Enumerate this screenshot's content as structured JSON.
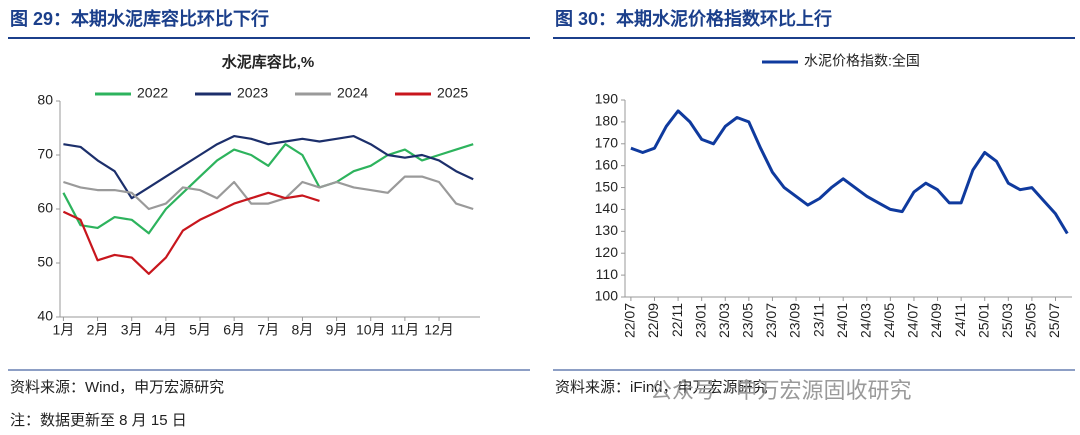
{
  "chart_data": [
    {
      "type": "line",
      "title": "图 29：本期水泥库容比环比下行",
      "chart_title": "水泥库容比,%",
      "x": [
        1,
        1.5,
        2,
        2.5,
        3,
        3.5,
        4,
        4.5,
        5,
        5.5,
        6,
        6.5,
        7,
        7.5,
        8,
        8.5,
        9,
        9.5,
        10,
        10.5,
        11,
        11.5,
        12,
        12.5,
        13
      ],
      "xlim": [
        0.9,
        13.2
      ],
      "xticks": [
        {
          "value": 1,
          "label": "1月"
        },
        {
          "value": 2,
          "label": "2月"
        },
        {
          "value": 3,
          "label": "3月"
        },
        {
          "value": 4,
          "label": "4月"
        },
        {
          "value": 5,
          "label": "5月"
        },
        {
          "value": 6,
          "label": "6月"
        },
        {
          "value": 7,
          "label": "7月"
        },
        {
          "value": 8,
          "label": "8月"
        },
        {
          "value": 9,
          "label": "9月"
        },
        {
          "value": 10,
          "label": "10月"
        },
        {
          "value": 11,
          "label": "11月"
        },
        {
          "value": 12,
          "label": "12月"
        }
      ],
      "ylim": [
        40,
        80
      ],
      "yticks": [
        40,
        50,
        60,
        70,
        80
      ],
      "legend": "top",
      "series": [
        {
          "name": "2022",
          "color": "#2db35d",
          "values": [
            63,
            57,
            56.5,
            58.5,
            58,
            55.5,
            60,
            63,
            66,
            69,
            71,
            70,
            68,
            72,
            70,
            64,
            65,
            67,
            68,
            70,
            71,
            69,
            70,
            71,
            72
          ]
        },
        {
          "name": "2023",
          "color": "#1c2f6b",
          "values": [
            72,
            71.5,
            69,
            67,
            62,
            64,
            66,
            68,
            70,
            72,
            73.5,
            73,
            72,
            72.5,
            73,
            72.5,
            73,
            73.5,
            72,
            70,
            69.5,
            70,
            69,
            67,
            65.5
          ]
        },
        {
          "name": "2024",
          "color": "#9a9a9a",
          "values": [
            65,
            64,
            63.5,
            63.5,
            63,
            60,
            61,
            64,
            63.5,
            62,
            65,
            61,
            61,
            62,
            65,
            64,
            65,
            64,
            63.5,
            63,
            66,
            66,
            65,
            61,
            60
          ]
        },
        {
          "name": "2025",
          "color": "#c8161d",
          "values": [
            59.5,
            58,
            50.5,
            51.5,
            51,
            48,
            51,
            56,
            58,
            59.5,
            61,
            62,
            63,
            62,
            62.5,
            61.5,
            null,
            null,
            null,
            null,
            null,
            null,
            null,
            null,
            null
          ]
        }
      ],
      "source": "资料来源：Wind，申万宏源研究",
      "note": "注：数据更新至 8 月 15 日"
    },
    {
      "type": "line",
      "title": "图 30：本期水泥价格指数环比上行",
      "x": [
        0,
        1,
        2,
        3,
        4,
        5,
        6,
        7,
        8,
        9,
        10,
        11,
        12,
        13,
        14,
        15,
        16,
        17,
        18,
        19,
        20,
        21,
        22,
        23,
        24,
        25,
        26,
        27,
        28,
        29,
        30,
        31,
        32,
        33,
        34,
        35,
        36,
        37
      ],
      "xlim": [
        -0.5,
        37.4
      ],
      "xticks": [
        {
          "value": 0,
          "label": "22/07"
        },
        {
          "value": 2,
          "label": "22/09"
        },
        {
          "value": 4,
          "label": "22/11"
        },
        {
          "value": 6,
          "label": "23/01"
        },
        {
          "value": 8,
          "label": "23/03"
        },
        {
          "value": 10,
          "label": "23/05"
        },
        {
          "value": 12,
          "label": "23/07"
        },
        {
          "value": 14,
          "label": "23/09"
        },
        {
          "value": 16,
          "label": "23/11"
        },
        {
          "value": 18,
          "label": "24/01"
        },
        {
          "value": 20,
          "label": "24/03"
        },
        {
          "value": 22,
          "label": "24/05"
        },
        {
          "value": 24,
          "label": "24/07"
        },
        {
          "value": 26,
          "label": "24/09"
        },
        {
          "value": 28,
          "label": "24/11"
        },
        {
          "value": 30,
          "label": "25/01"
        },
        {
          "value": 32,
          "label": "25/03"
        },
        {
          "value": 34,
          "label": "25/05"
        },
        {
          "value": 36,
          "label": "25/07"
        }
      ],
      "ylim": [
        100,
        190
      ],
      "yticks": [
        100,
        110,
        120,
        130,
        140,
        150,
        160,
        170,
        180,
        190
      ],
      "legend": "top",
      "series": [
        {
          "name": "水泥价格指数:全国",
          "color": "#0f3a9e",
          "values": [
            168,
            166,
            168,
            178,
            185,
            180,
            172,
            170,
            178,
            182,
            180,
            168,
            157,
            150,
            146,
            142,
            145,
            150,
            154,
            150,
            146,
            143,
            140,
            139,
            148,
            152,
            149,
            143,
            143,
            158,
            166,
            162,
            152,
            149,
            150,
            144,
            138,
            129
          ]
        }
      ],
      "source": "资料来源：iFind，申万宏源研究"
    }
  ],
  "watermark": "公众号 · 申万宏源固收研究"
}
